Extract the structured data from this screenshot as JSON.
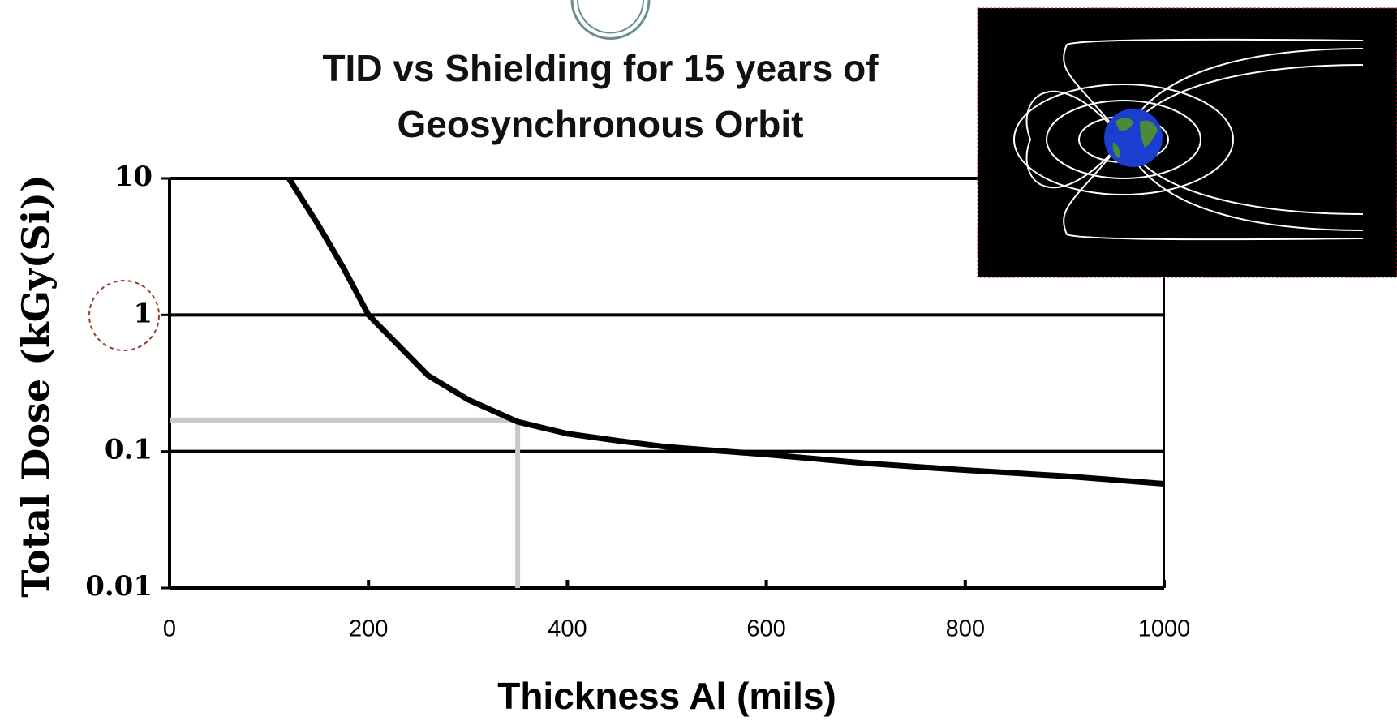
{
  "chart_data": {
    "type": "line",
    "title": "TID vs Shielding for 15 years of Geosynchronous Orbit",
    "x_label": "Thickness Al (mils)",
    "y_label": "Total Dose (kGy(Si))",
    "x": [
      120,
      150,
      175,
      200,
      230,
      260,
      300,
      350,
      400,
      450,
      500,
      600,
      700,
      800,
      900,
      1000
    ],
    "series": [
      {
        "color": "#000000",
        "values": [
          10,
          4.5,
          2.2,
          1.0,
          0.6,
          0.36,
          0.24,
          0.165,
          0.135,
          0.12,
          0.108,
          0.095,
          0.082,
          0.073,
          0.066,
          0.058
        ]
      }
    ],
    "xlim": [
      0,
      1000
    ],
    "xticks": [
      0,
      200,
      400,
      600,
      800,
      1000
    ],
    "ylim": [
      0.01,
      10
    ],
    "yticks": [
      0.01,
      0.1,
      1,
      10
    ],
    "y_scale": "log",
    "grid": true,
    "reference": {
      "x": 350,
      "y": 0.17,
      "color": "#c8c8c8"
    }
  }
}
